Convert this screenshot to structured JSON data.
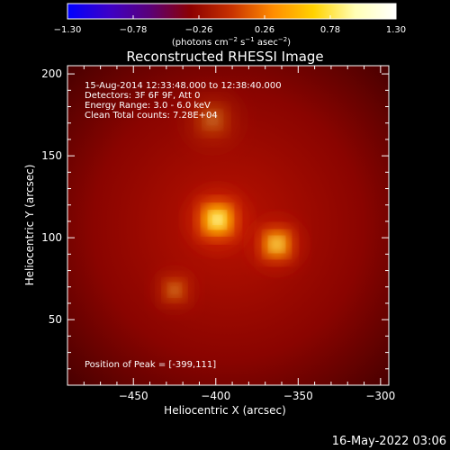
{
  "chart_data": {
    "type": "heatmap",
    "title": "Reconstructed RHESSI Image",
    "xlabel": "Heliocentric X (arcsec)",
    "ylabel": "Heliocentric Y (arcsec)",
    "xlim": [
      -490,
      -295
    ],
    "ylim": [
      10,
      205
    ],
    "x_ticks": [
      -450,
      -400,
      -350,
      -300
    ],
    "y_ticks": [
      50,
      100,
      150,
      200
    ],
    "x_tick_labels": [
      "−450",
      "−400",
      "−350",
      "−300"
    ],
    "y_tick_labels": [
      "50",
      "100",
      "150",
      "200"
    ],
    "colorbar": {
      "min": -1.3,
      "max": 1.3,
      "ticks": [
        "−1.30",
        "−0.78",
        "−0.26",
        "0.26",
        "0.78",
        "1.30"
      ],
      "units_prefix": "(photons cm",
      "units_exp1": "−2",
      "units_mid": " s",
      "units_exp2": "−1",
      "units_mid2": " asec",
      "units_exp3": "−2",
      "units_suffix": ")",
      "colormap": [
        "#0000ff",
        "#3c00c8",
        "#5a0078",
        "#8c0000",
        "#c83200",
        "#ff8c00",
        "#ffd200",
        "#ffffb4",
        "#ffffff"
      ]
    },
    "info_lines": [
      "15-Aug-2014 12:33:48.000 to 12:38:40.000",
      "Detectors: 3F 6F 9F, Att 0",
      "Energy Range: 3.0 - 6.0 keV",
      "Clean     Total counts: 7.28E+04"
    ],
    "peak_label": "Position of Peak = [-399,111]",
    "sources": [
      {
        "x": -399,
        "y": 111,
        "amplitude": 1.3,
        "width": 9
      },
      {
        "x": -363,
        "y": 96,
        "amplitude": 0.95,
        "width": 8
      },
      {
        "x": -425,
        "y": 68,
        "amplitude": 0.35,
        "width": 7
      },
      {
        "x": -402,
        "y": 172,
        "amplitude": 0.25,
        "width": 10
      }
    ],
    "background_level": 0.55
  },
  "footer": {
    "timestamp": "16-May-2022 03:06"
  }
}
